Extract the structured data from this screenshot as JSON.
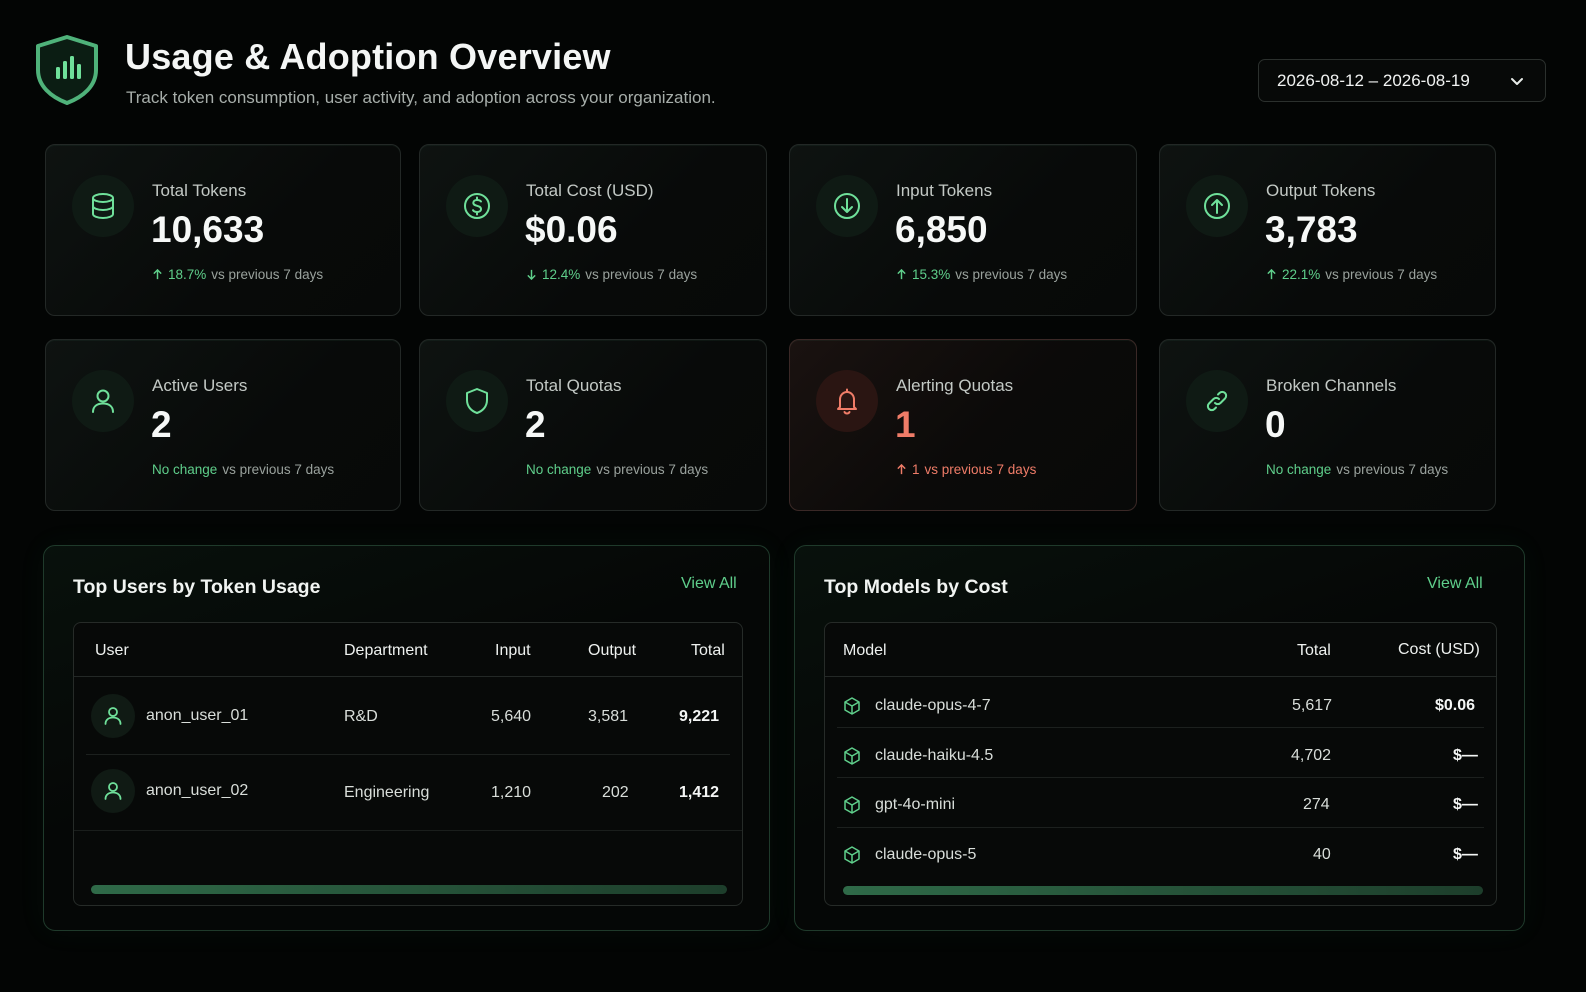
{
  "header": {
    "title": "Usage & Adoption Overview",
    "subtitle": "Track token consumption, user activity, and adoption across your organization.",
    "date_range": "2026-08-12 – 2026-08-19",
    "logo_icon": "shield-chart-icon",
    "accent": "#5fcf8b"
  },
  "stats": [
    {
      "label": "Total Tokens",
      "value": "10,633",
      "delta": "18.7%",
      "delta_suffix": "vs previous 7 days",
      "direction": "up",
      "icon": "database-icon"
    },
    {
      "label": "Total Cost (USD)",
      "value": "$0.06",
      "delta": "12.4%",
      "delta_suffix": "vs previous 7 days",
      "direction": "down",
      "icon": "dollar-icon"
    },
    {
      "label": "Input Tokens",
      "value": "6,850",
      "delta": "15.3%",
      "delta_suffix": "vs previous 7 days",
      "direction": "up",
      "icon": "arrow-down-circle-icon"
    },
    {
      "label": "Output Tokens",
      "value": "3,783",
      "delta": "22.1%",
      "delta_suffix": "vs previous 7 days",
      "direction": "up",
      "icon": "arrow-up-circle-icon"
    },
    {
      "label": "Active Users",
      "value": "2",
      "delta": "No change",
      "delta_suffix": "vs previous 7 days",
      "direction": "none",
      "icon": "user-icon"
    },
    {
      "label": "Total Quotas",
      "value": "2",
      "delta": "No change",
      "delta_suffix": "vs previous 7 days",
      "direction": "none",
      "icon": "shield-icon"
    },
    {
      "label": "Alerting Quotas",
      "value": "1",
      "delta": "1",
      "delta_suffix": "vs previous 7 days",
      "direction": "up",
      "icon": "bell-icon",
      "alert_color": "#ef7c68"
    },
    {
      "label": "Broken Channels",
      "value": "0",
      "delta": "No change",
      "delta_suffix": "vs previous 7 days",
      "direction": "none",
      "icon": "link-icon"
    }
  ],
  "top_users": {
    "title": "Top Users by Token Usage",
    "view_all": "View All",
    "columns": [
      "User",
      "Department",
      "Input",
      "Output",
      "Total"
    ],
    "rows": [
      {
        "user": "anon_user_01",
        "department": "R&D",
        "input": "5,640",
        "output": "3,581",
        "total": "9,221"
      },
      {
        "user": "anon_user_02",
        "department": "Engineering",
        "input": "1,210",
        "output": "202",
        "total": "1,412"
      }
    ]
  },
  "top_models": {
    "title": "Top Models by Cost",
    "view_all": "View All",
    "columns": [
      "Model",
      "Total",
      "Cost (USD)"
    ],
    "rows": [
      {
        "model": "claude-opus-4-7",
        "total": "5,617",
        "cost": "$0.06"
      },
      {
        "model": "claude-haiku-4.5",
        "total": "4,702",
        "cost": "$—"
      },
      {
        "model": "gpt-4o-mini",
        "total": "274",
        "cost": "$—"
      },
      {
        "model": "claude-opus-5",
        "total": "40",
        "cost": "$—"
      }
    ]
  }
}
